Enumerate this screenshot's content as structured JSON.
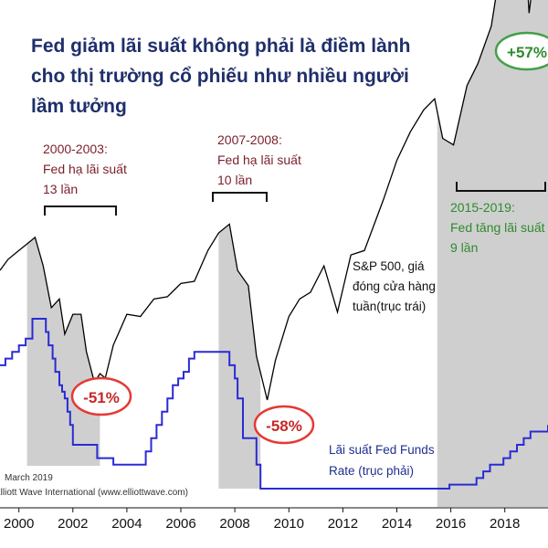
{
  "chart_data": {
    "type": "line",
    "title_lines": [
      "Fed giảm lãi suất không phải là điềm lành",
      "cho thị trường cổ phiếu như nhiều người",
      "lầm tưởng"
    ],
    "x_ticks": [
      "2000",
      "2002",
      "2004",
      "2006",
      "2008",
      "2010",
      "2012",
      "2014",
      "2016",
      "2018"
    ],
    "xlim": [
      1999.3,
      2019.6
    ],
    "annotations": {
      "period1": [
        "2000-2003:",
        "Fed hạ lãi suất",
        "13 lần"
      ],
      "period2": [
        "2007-2008:",
        "Fed hạ lãi suất",
        "10 lần"
      ],
      "period3": [
        "2015-2019:",
        "Fed tăng lãi suất",
        "9 lần"
      ],
      "sp500_label": [
        "S&P 500, giá",
        "đóng cửa hàng",
        "tuần(trục trái)"
      ],
      "fed_label": [
        "Lãi suất Fed Funds",
        "Rate (trục phải)"
      ],
      "badge1": "-51%",
      "badge2": "-58%",
      "badge3": "+57%"
    },
    "source_lines": [
      "March 2019",
      "Elliott Wave International (www.elliottwave.com)"
    ],
    "series": [
      {
        "name": "S&P 500, giá đóng cửa hàng tuần(trục trái)",
        "x": [
          1999.3,
          1999.6,
          2000.0,
          2000.2,
          2000.6,
          2000.9,
          2001.2,
          2001.5,
          2001.7,
          2002.0,
          2002.3,
          2002.5,
          2002.8,
          2003.0,
          2003.2,
          2003.5,
          2004.0,
          2004.5,
          2005.0,
          2005.5,
          2006.0,
          2006.5,
          2007.0,
          2007.4,
          2007.8,
          2008.1,
          2008.5,
          2008.8,
          2009.2,
          2009.5,
          2010.0,
          2010.4,
          2010.8,
          2011.3,
          2011.8,
          2012.3,
          2012.8,
          2013.5,
          2014.0,
          2014.5,
          2015.0,
          2015.4,
          2015.7,
          2016.1,
          2016.6,
          2017.0,
          2017.5,
          2018.0,
          2018.2,
          2018.7,
          2018.9,
          2019.2
        ],
        "values": [
          1330,
          1380,
          1420,
          1440,
          1480,
          1350,
          1160,
          1200,
          1040,
          1130,
          1130,
          960,
          820,
          860,
          840,
          990,
          1130,
          1120,
          1200,
          1210,
          1270,
          1280,
          1420,
          1500,
          1540,
          1330,
          1260,
          940,
          740,
          920,
          1120,
          1200,
          1230,
          1350,
          1140,
          1400,
          1420,
          1650,
          1830,
          1960,
          2060,
          2110,
          1930,
          1900,
          2170,
          2270,
          2440,
          2830,
          2640,
          2910,
          2500,
          2800
        ]
      },
      {
        "name": "Lãi suất Fed Funds Rate (trục phải)",
        "x": [
          1999.3,
          1999.5,
          1999.75,
          2000.0,
          2000.25,
          2000.5,
          2001.0,
          2001.1,
          2001.25,
          2001.35,
          2001.5,
          2001.6,
          2001.7,
          2001.8,
          2001.9,
          2002.0,
          2002.9,
          2003.5,
          2004.5,
          2004.7,
          2004.9,
          2005.1,
          2005.3,
          2005.5,
          2005.7,
          2005.9,
          2006.1,
          2006.3,
          2006.5,
          2007.6,
          2007.8,
          2008.0,
          2008.1,
          2008.3,
          2008.8,
          2008.95,
          2015.5,
          2015.95,
          2016.95,
          2017.2,
          2017.45,
          2017.95,
          2018.2,
          2018.45,
          2018.7,
          2018.95,
          2019.6
        ],
        "values": [
          4.75,
          5.0,
          5.25,
          5.5,
          5.75,
          6.5,
          6.0,
          5.5,
          5.0,
          4.5,
          4.0,
          3.75,
          3.5,
          3.0,
          2.5,
          1.75,
          1.25,
          1.0,
          1.0,
          1.5,
          2.0,
          2.5,
          3.0,
          3.5,
          4.0,
          4.25,
          4.5,
          5.0,
          5.25,
          5.25,
          4.75,
          4.25,
          3.5,
          2.0,
          1.0,
          0.1,
          0.1,
          0.25,
          0.5,
          0.75,
          1.0,
          1.25,
          1.5,
          1.75,
          2.0,
          2.25,
          2.5
        ]
      }
    ],
    "colors": {
      "sp500": "#000000",
      "fed": "#2a2bd4",
      "shade": "#cfcfcf",
      "title": "#1f2f6b",
      "red": "#c62828",
      "green": "#2e8b2e"
    },
    "grid": false
  }
}
